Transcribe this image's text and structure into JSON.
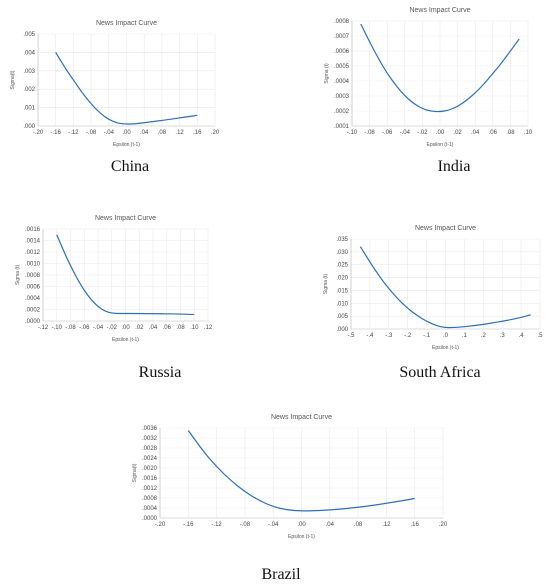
{
  "figure": {
    "captions": [
      "China",
      "India",
      "Russia",
      "South Africa",
      "Brazil"
    ]
  },
  "colors": {
    "line": "#2e6fb5",
    "grid": "#e9e9e9",
    "axis": "#bdbdbd"
  },
  "chart_data": [
    {
      "type": "line",
      "title": "News Impact Curve",
      "xlabel": "Epsilon (t-1)",
      "ylabel": "Sigma(t)",
      "xlim": [
        -0.2,
        0.2
      ],
      "ylim": [
        0.0,
        0.005
      ],
      "x_ticks": [
        ".20",
        ".16",
        ".12",
        ".08",
        ".04",
        ".00",
        ".04",
        ".08",
        ".12",
        ".16",
        ".20"
      ],
      "y_ticks": [
        ".000",
        ".001",
        ".002",
        ".003",
        ".004",
        ".005"
      ],
      "x_tick_signs": [
        "-",
        "-",
        "-",
        "-",
        "-",
        "",
        "",
        "",
        "",
        "",
        ""
      ],
      "series": [
        {
          "x": [
            -0.16,
            -0.14,
            -0.12,
            -0.1,
            -0.08,
            -0.06,
            -0.04,
            -0.02,
            0.0,
            0.02,
            0.04,
            0.06,
            0.08,
            0.1,
            0.12,
            0.14,
            0.16
          ],
          "values": [
            0.004,
            0.0032,
            0.0025,
            0.0018,
            0.0012,
            0.0007,
            0.00035,
            0.00015,
            0.0001,
            0.00012,
            0.00018,
            0.00024,
            0.0003,
            0.00037,
            0.00044,
            0.00051,
            0.00058
          ]
        }
      ]
    },
    {
      "type": "line",
      "title": "News Impact Curve",
      "xlabel": "Epsilon (t-1)",
      "ylabel": "Sigma (t)",
      "xlim": [
        -0.1,
        0.1
      ],
      "ylim": [
        0.0001,
        0.0008
      ],
      "x_ticks": [
        ".10",
        ".08",
        ".06",
        ".04",
        ".02",
        ".00",
        ".02",
        ".04",
        ".06",
        ".08",
        ".10"
      ],
      "y_ticks": [
        ".0001",
        ".0002",
        ".0003",
        ".0004",
        ".0005",
        ".0006",
        ".0007",
        ".0008"
      ],
      "x_tick_signs": [
        "-",
        "-",
        "-",
        "-",
        "-",
        "",
        "",
        "",
        "",
        "",
        ""
      ],
      "series": [
        {
          "x": [
            -0.09,
            -0.08,
            -0.07,
            -0.06,
            -0.05,
            -0.04,
            -0.03,
            -0.02,
            -0.01,
            0.0,
            0.01,
            0.02,
            0.03,
            0.04,
            0.05,
            0.06,
            0.07,
            0.08,
            0.09
          ],
          "values": [
            0.00078,
            0.00066,
            0.00055,
            0.00045,
            0.00037,
            0.0003,
            0.00025,
            0.000215,
            0.000198,
            0.000195,
            0.000205,
            0.00023,
            0.00027,
            0.00032,
            0.00038,
            0.00045,
            0.00052,
            0.0006,
            0.00068
          ]
        }
      ]
    },
    {
      "type": "line",
      "title": "News Impact Curve",
      "xlabel": "Epsilon (t-1)",
      "ylabel": "Sigma (t)",
      "xlim": [
        -0.12,
        0.12
      ],
      "ylim": [
        0.0,
        0.0016
      ],
      "x_ticks": [
        ".12",
        ".10",
        ".08",
        ".06",
        ".04",
        ".02",
        ".00",
        ".02",
        ".04",
        ".06",
        ".08",
        ".10",
        ".12"
      ],
      "y_ticks": [
        ".0000",
        ".0002",
        ".0004",
        ".0006",
        ".0008",
        ".0010",
        ".0012",
        ".0014",
        ".0016"
      ],
      "x_tick_signs": [
        "-",
        "-",
        "-",
        "-",
        "-",
        "-",
        "",
        "",
        "",
        "",
        "",
        "",
        ""
      ],
      "series": [
        {
          "x": [
            -0.1,
            -0.09,
            -0.08,
            -0.07,
            -0.06,
            -0.05,
            -0.04,
            -0.03,
            -0.02,
            -0.01,
            0.0,
            0.02,
            0.04,
            0.06,
            0.08,
            0.1
          ],
          "values": [
            0.0015,
            0.00122,
            0.00096,
            0.00073,
            0.00053,
            0.00037,
            0.00025,
            0.00017,
            0.000135,
            0.00013,
            0.00013,
            0.00013,
            0.000128,
            0.000125,
            0.00012,
            0.000112
          ]
        }
      ]
    },
    {
      "type": "line",
      "title": "News Impact Curve",
      "xlabel": "Epsilon (t-1)",
      "ylabel": "Sigma (t)",
      "xlim": [
        -0.5,
        0.5
      ],
      "ylim": [
        0.0,
        0.035
      ],
      "x_ticks": [
        ".5",
        ".4",
        ".3",
        ".2",
        ".1",
        ".0",
        ".1",
        ".2",
        ".3",
        ".4",
        ".5"
      ],
      "y_ticks": [
        ".000",
        ".005",
        ".010",
        ".015",
        ".020",
        ".025",
        ".030",
        ".035"
      ],
      "x_tick_signs": [
        "-",
        "-",
        "-",
        "-",
        "-",
        "",
        "",
        "",
        "",
        "",
        ""
      ],
      "series": [
        {
          "x": [
            -0.45,
            -0.4,
            -0.35,
            -0.3,
            -0.25,
            -0.2,
            -0.15,
            -0.1,
            -0.05,
            0.0,
            0.05,
            0.1,
            0.15,
            0.2,
            0.25,
            0.3,
            0.35,
            0.4,
            0.45
          ],
          "values": [
            0.032,
            0.026,
            0.0205,
            0.0157,
            0.0115,
            0.008,
            0.0052,
            0.003,
            0.0013,
            0.0005,
            0.0006,
            0.0009,
            0.0013,
            0.0018,
            0.0024,
            0.003,
            0.0037,
            0.0045,
            0.0055
          ]
        }
      ]
    },
    {
      "type": "line",
      "title": "News Impact Curve",
      "xlabel": "Epsilon (t-1)",
      "ylabel": "Sigma(t)",
      "xlim": [
        -0.2,
        0.2
      ],
      "ylim": [
        0.0,
        0.0036
      ],
      "x_ticks": [
        ".20",
        ".16",
        ".12",
        ".08",
        ".04",
        ".00",
        ".04",
        ".08",
        ".12",
        ".16",
        ".20"
      ],
      "y_ticks": [
        ".0000",
        ".0004",
        ".0008",
        ".0012",
        ".0016",
        ".0020",
        ".0024",
        ".0028",
        ".0032",
        ".0036"
      ],
      "x_tick_signs": [
        "-",
        "-",
        "-",
        "-",
        "-",
        "",
        "",
        "",
        "",
        "",
        ""
      ],
      "series": [
        {
          "x": [
            -0.16,
            -0.14,
            -0.12,
            -0.1,
            -0.08,
            -0.06,
            -0.04,
            -0.02,
            0.0,
            0.02,
            0.04,
            0.06,
            0.08,
            0.1,
            0.12,
            0.14,
            0.16
          ],
          "values": [
            0.0035,
            0.0027,
            0.00205,
            0.0015,
            0.00105,
            0.0007,
            0.00045,
            0.00032,
            0.00028,
            0.00029,
            0.00032,
            0.00037,
            0.00043,
            0.0005,
            0.00059,
            0.00068,
            0.00078
          ]
        }
      ]
    }
  ]
}
